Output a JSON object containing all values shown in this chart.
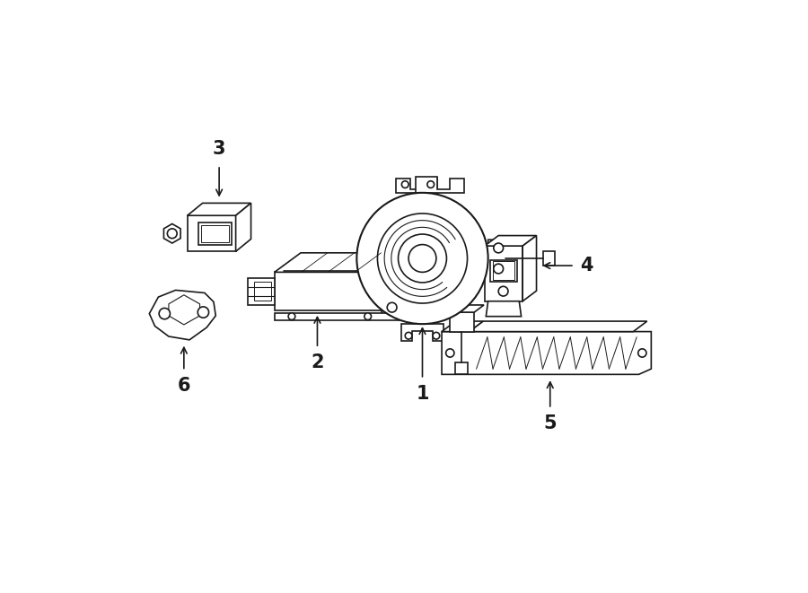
{
  "background_color": "#ffffff",
  "line_color": "#1a1a1a",
  "figsize": [
    9.0,
    6.61
  ],
  "dpi": 100,
  "lw": 1.2
}
